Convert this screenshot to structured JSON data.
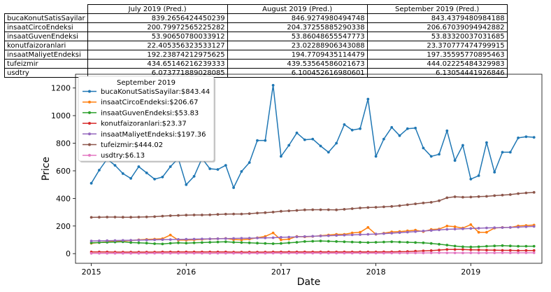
{
  "table": {
    "columns": [
      "July 2019 (Pred.)",
      "August 2019 (Pred.)",
      "September 2019 (Pred.)"
    ],
    "rows": [
      {
        "label": "bucaKonutSatisSayilar",
        "values": [
          "839.2656424450239",
          "846.9274980494748",
          "843.4379480984188"
        ]
      },
      {
        "label": "insaatCircoEndeksi",
        "values": [
          "200.79972565225282",
          "204.37255885290338",
          "206.67039094942882"
        ]
      },
      {
        "label": "insaatGuvenEndeksi",
        "values": [
          "53.90650780033912",
          "53.86048655547773",
          "53.83320037031685"
        ]
      },
      {
        "label": "konutfaizoranlari",
        "values": [
          "22.405356323533127",
          "23.02288906343088",
          "23.370777474799915"
        ]
      },
      {
        "label": "insaatMaliyetEndeksi",
        "values": [
          "192.23874212975625",
          "194.7709435114479",
          "197.35595770895463"
        ]
      },
      {
        "label": "tufeizmir",
        "values": [
          "434.65146216239333",
          "439.53564586021673",
          "444.02225484329983"
        ]
      },
      {
        "label": "usdtry",
        "values": [
          "6.073771889028085",
          "6.100452616980601",
          "6.13054441926846"
        ]
      }
    ]
  },
  "chart_data": {
    "type": "line",
    "title": "",
    "xlabel": "Date",
    "ylabel": "Price",
    "xlim": [
      "2014-11-01",
      "2019-10-01"
    ],
    "ylim": [
      -70,
      1300
    ],
    "x_ticks": [
      "2015",
      "2016",
      "2017",
      "2018",
      "2019"
    ],
    "y_ticks": [
      0,
      200,
      400,
      600,
      800,
      1000,
      1200
    ],
    "grid": false,
    "legend": {
      "title": "September 2019",
      "placement": "top-left"
    },
    "x": [
      "2015-01",
      "2015-02",
      "2015-03",
      "2015-04",
      "2015-05",
      "2015-06",
      "2015-07",
      "2015-08",
      "2015-09",
      "2015-10",
      "2015-11",
      "2015-12",
      "2016-01",
      "2016-02",
      "2016-03",
      "2016-04",
      "2016-05",
      "2016-06",
      "2016-07",
      "2016-08",
      "2016-09",
      "2016-10",
      "2016-11",
      "2016-12",
      "2017-01",
      "2017-02",
      "2017-03",
      "2017-04",
      "2017-05",
      "2017-06",
      "2017-07",
      "2017-08",
      "2017-09",
      "2017-10",
      "2017-11",
      "2017-12",
      "2018-01",
      "2018-02",
      "2018-03",
      "2018-04",
      "2018-05",
      "2018-06",
      "2018-07",
      "2018-08",
      "2018-09",
      "2018-10",
      "2018-11",
      "2018-12",
      "2019-01",
      "2019-02",
      "2019-03",
      "2019-04",
      "2019-05",
      "2019-06",
      "2019-07",
      "2019-08",
      "2019-09"
    ],
    "series": [
      {
        "name": "bucaKonutSatisSayilar:$843.44",
        "color": "#1f77b4",
        "values": [
          510,
          605,
          685,
          640,
          580,
          545,
          630,
          585,
          540,
          555,
          630,
          690,
          500,
          560,
          690,
          615,
          610,
          640,
          478,
          595,
          660,
          820,
          820,
          1220,
          705,
          785,
          875,
          825,
          830,
          780,
          735,
          800,
          935,
          895,
          905,
          1120,
          705,
          830,
          915,
          855,
          905,
          910,
          765,
          705,
          720,
          890,
          675,
          785,
          540,
          565,
          805,
          590,
          735,
          735,
          839,
          847,
          843
        ]
      },
      {
        "name": "insaatCircoEndeksi:$206.67",
        "color": "#ff7f0e",
        "values": [
          75,
          80,
          85,
          90,
          92,
          95,
          100,
          103,
          105,
          108,
          135,
          98,
          98,
          100,
          103,
          106,
          108,
          110,
          102,
          100,
          105,
          115,
          125,
          150,
          100,
          105,
          125,
          122,
          125,
          130,
          135,
          140,
          140,
          150,
          155,
          190,
          140,
          148,
          158,
          160,
          165,
          170,
          160,
          175,
          178,
          200,
          195,
          185,
          210,
          155,
          155,
          185,
          190,
          190,
          201,
          204,
          207
        ]
      },
      {
        "name": "insaatGuvenEndeksi:$53.83",
        "color": "#2ca02c",
        "values": [
          78,
          80,
          82,
          84,
          86,
          80,
          78,
          76,
          72,
          70,
          75,
          78,
          76,
          78,
          80,
          82,
          84,
          86,
          82,
          80,
          78,
          76,
          74,
          72,
          74,
          78,
          82,
          88,
          90,
          92,
          90,
          88,
          86,
          84,
          82,
          80,
          82,
          84,
          86,
          84,
          82,
          80,
          78,
          74,
          68,
          62,
          55,
          50,
          48,
          50,
          54,
          56,
          58,
          56,
          54,
          54,
          54
        ]
      },
      {
        "name": "konutfaizoranlari:$23.37",
        "color": "#d62728",
        "values": [
          12,
          12,
          12,
          11,
          11,
          11,
          11,
          11,
          11,
          12,
          12,
          12,
          12,
          12,
          12,
          12,
          12,
          12,
          11,
          11,
          11,
          11,
          11,
          12,
          12,
          12,
          12,
          12,
          12,
          12,
          12,
          12,
          12,
          12,
          12,
          12,
          12,
          13,
          13,
          14,
          15,
          18,
          20,
          22,
          26,
          30,
          30,
          30,
          28,
          27,
          26,
          25,
          24,
          24,
          22,
          23,
          23
        ]
      },
      {
        "name": "insaatMaliyetEndeksi:$197.36",
        "color": "#9467bd",
        "values": [
          92,
          93,
          94,
          95,
          96,
          97,
          98,
          99,
          100,
          101,
          102,
          103,
          104,
          105,
          106,
          107,
          108,
          109,
          110,
          111,
          112,
          113,
          114,
          115,
          118,
          120,
          122,
          124,
          126,
          128,
          130,
          132,
          134,
          136,
          138,
          140,
          142,
          145,
          148,
          152,
          156,
          160,
          164,
          168,
          172,
          176,
          178,
          180,
          182,
          184,
          186,
          188,
          189,
          190,
          192,
          195,
          197
        ]
      },
      {
        "name": "tufeizmir:$444.02",
        "color": "#8c564b",
        "values": [
          263,
          264,
          265,
          265,
          264,
          264,
          265,
          266,
          268,
          272,
          275,
          277,
          279,
          280,
          280,
          281,
          284,
          286,
          287,
          287,
          290,
          294,
          297,
          301,
          307,
          310,
          313,
          317,
          318,
          318,
          318,
          317,
          321,
          326,
          331,
          334,
          336,
          339,
          342,
          347,
          354,
          361,
          367,
          372,
          383,
          405,
          412,
          409,
          410,
          413,
          415,
          420,
          424,
          428,
          435,
          440,
          444
        ]
      },
      {
        "name": "usdtry:$6.13",
        "color": "#e377c2",
        "values": [
          2.3,
          2.4,
          2.5,
          2.6,
          2.7,
          2.7,
          2.7,
          2.8,
          3.0,
          2.9,
          2.9,
          2.9,
          3.0,
          2.9,
          2.9,
          2.8,
          2.9,
          2.9,
          2.9,
          3.0,
          3.0,
          3.1,
          3.3,
          3.5,
          3.7,
          3.6,
          3.6,
          3.6,
          3.5,
          3.5,
          3.5,
          3.5,
          3.5,
          3.7,
          3.9,
          3.8,
          3.8,
          3.8,
          3.9,
          4.0,
          4.3,
          4.6,
          4.8,
          5.8,
          6.3,
          5.8,
          5.4,
          5.3,
          5.4,
          5.3,
          5.4,
          5.6,
          5.9,
          5.8,
          6.07,
          6.1,
          6.13
        ]
      }
    ]
  }
}
